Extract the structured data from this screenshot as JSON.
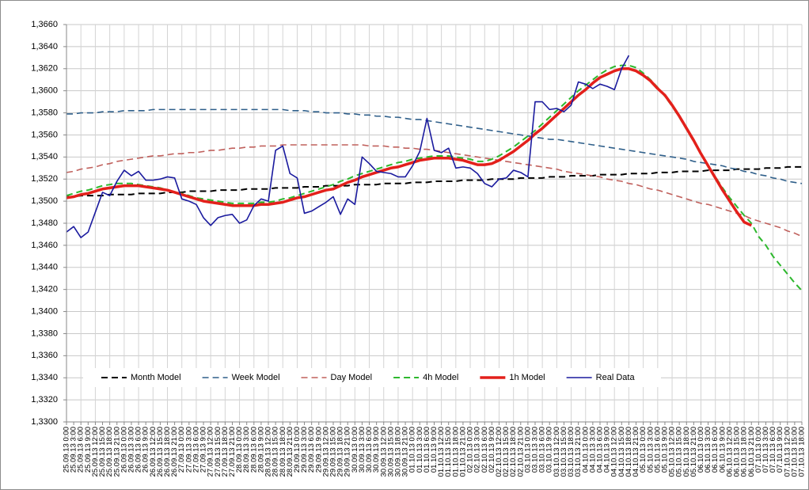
{
  "chart_data": {
    "type": "line",
    "categories": [
      "25.09.13 0:00",
      "25.09.13 3:00",
      "25.09.13 6:00",
      "25.09.13 9:00",
      "25.09.13 12:00",
      "25.09.13 15:00",
      "25.09.13 18:00",
      "25.09.13 21:00",
      "26.09.13 0:00",
      "26.09.13 3:00",
      "26.09.13 6:00",
      "26.09.13 9:00",
      "26.09.13 12:00",
      "26.09.13 15:00",
      "26.09.13 18:00",
      "26.09.13 21:00",
      "27.09.13 0:00",
      "27.09.13 3:00",
      "27.09.13 6:00",
      "27.09.13 9:00",
      "27.09.13 12:00",
      "27.09.13 15:00",
      "27.09.13 18:00",
      "27.09.13 21:00",
      "28.09.13 0:00",
      "28.09.13 3:00",
      "28.09.13 6:00",
      "28.09.13 9:00",
      "28.09.13 12:00",
      "28.09.13 15:00",
      "28.09.13 18:00",
      "28.09.13 21:00",
      "29.09.13 0:00",
      "29.09.13 3:00",
      "29.09.13 6:00",
      "29.09.13 9:00",
      "29.09.13 12:00",
      "29.09.13 15:00",
      "29.09.13 18:00",
      "29.09.13 21:00",
      "30.09.13 0:00",
      "30.09.13 3:00",
      "30.09.13 6:00",
      "30.09.13 9:00",
      "30.09.13 12:00",
      "30.09.13 15:00",
      "30.09.13 18:00",
      "30.09.13 21:00",
      "01.10.13 0:00",
      "01.10.13 3:00",
      "01.10.13 6:00",
      "01.10.13 9:00",
      "01.10.13 12:00",
      "01.10.13 15:00",
      "01.10.13 18:00",
      "01.10.13 21:00",
      "02.10.13 0:00",
      "02.10.13 3:00",
      "02.10.13 6:00",
      "02.10.13 9:00",
      "02.10.13 12:00",
      "02.10.13 15:00",
      "02.10.13 18:00",
      "02.10.13 21:00",
      "03.10.13 0:00",
      "03.10.13 3:00",
      "03.10.13 6:00",
      "03.10.13 9:00",
      "03.10.13 12:00",
      "03.10.13 15:00",
      "03.10.13 18:00",
      "03.10.13 21:00",
      "04.10.13 0:00",
      "04.10.13 3:00",
      "04.10.13 6:00",
      "04.10.13 9:00",
      "04.10.13 12:00",
      "04.10.13 15:00",
      "04.10.13 18:00",
      "04.10.13 21:00",
      "05.10.13 0:00",
      "05.10.13 3:00",
      "05.10.13 6:00",
      "05.10.13 9:00",
      "05.10.13 12:00",
      "05.10.13 15:00",
      "05.10.13 18:00",
      "05.10.13 21:00",
      "06.10.13 0:00",
      "06.10.13 3:00",
      "06.10.13 6:00",
      "06.10.13 9:00",
      "06.10.13 12:00",
      "06.10.13 15:00",
      "06.10.13 18:00",
      "06.10.13 21:00",
      "07.10.13 0:00",
      "07.10.13 3:00",
      "07.10.13 6:00",
      "07.10.13 9:00",
      "07.10.13 12:00",
      "07.10.13 15:00",
      "07.10.13 18:00"
    ],
    "series": [
      {
        "name": "Month Model",
        "color": "#000000",
        "dash": true,
        "width": 2,
        "values": [
          1.3504,
          1.3504,
          1.3505,
          1.3505,
          1.3505,
          1.3505,
          1.3506,
          1.3506,
          1.3506,
          1.3506,
          1.3507,
          1.3507,
          1.3507,
          1.3507,
          1.3508,
          1.3508,
          1.3508,
          1.3509,
          1.3509,
          1.3509,
          1.3509,
          1.351,
          1.351,
          1.351,
          1.351,
          1.3511,
          1.3511,
          1.3511,
          1.3511,
          1.3512,
          1.3512,
          1.3512,
          1.3512,
          1.3513,
          1.3513,
          1.3513,
          1.3514,
          1.3514,
          1.3514,
          1.3514,
          1.3515,
          1.3515,
          1.3515,
          1.3515,
          1.3516,
          1.3516,
          1.3516,
          1.3516,
          1.3517,
          1.3517,
          1.3517,
          1.3518,
          1.3518,
          1.3518,
          1.3518,
          1.3519,
          1.3519,
          1.3519,
          1.3519,
          1.352,
          1.352,
          1.352,
          1.352,
          1.3521,
          1.3521,
          1.3521,
          1.3521,
          1.3522,
          1.3522,
          1.3522,
          1.3523,
          1.3523,
          1.3523,
          1.3523,
          1.3524,
          1.3524,
          1.3524,
          1.3524,
          1.3525,
          1.3525,
          1.3525,
          1.3525,
          1.3526,
          1.3526,
          1.3526,
          1.3527,
          1.3527,
          1.3527,
          1.3527,
          1.3528,
          1.3528,
          1.3528,
          1.3528,
          1.3529,
          1.3529,
          1.3529,
          1.3529,
          1.353,
          1.353,
          1.353,
          1.3531,
          1.3531,
          1.3531
        ]
      },
      {
        "name": "Week Model",
        "color": "#2f5f8a",
        "dash": true,
        "width": 1.6,
        "values": [
          1.3579,
          1.3579,
          1.358,
          1.358,
          1.358,
          1.3581,
          1.3581,
          1.3581,
          1.3582,
          1.3582,
          1.3582,
          1.3582,
          1.3583,
          1.3583,
          1.3583,
          1.3583,
          1.3583,
          1.3583,
          1.3583,
          1.3583,
          1.3583,
          1.3583,
          1.3583,
          1.3583,
          1.3583,
          1.3583,
          1.3583,
          1.3583,
          1.3583,
          1.3583,
          1.3583,
          1.3582,
          1.3582,
          1.3582,
          1.3581,
          1.3581,
          1.358,
          1.358,
          1.358,
          1.3579,
          1.3579,
          1.3578,
          1.3578,
          1.3577,
          1.3577,
          1.3576,
          1.3576,
          1.3575,
          1.3574,
          1.3574,
          1.3573,
          1.3572,
          1.3571,
          1.357,
          1.3569,
          1.3568,
          1.3567,
          1.3566,
          1.3565,
          1.3564,
          1.3563,
          1.3562,
          1.3561,
          1.356,
          1.3559,
          1.3558,
          1.3557,
          1.3556,
          1.3556,
          1.3555,
          1.3554,
          1.3553,
          1.3552,
          1.3551,
          1.355,
          1.3549,
          1.3548,
          1.3547,
          1.3546,
          1.3545,
          1.3544,
          1.3543,
          1.3542,
          1.3541,
          1.354,
          1.3539,
          1.3538,
          1.3536,
          1.3535,
          1.3534,
          1.3533,
          1.3532,
          1.353,
          1.3529,
          1.3527,
          1.3526,
          1.3524,
          1.3523,
          1.3521,
          1.352,
          1.3518,
          1.3517,
          1.3516
        ]
      },
      {
        "name": "Day Model",
        "color": "#c0605c",
        "dash": true,
        "width": 1.6,
        "values": [
          1.3526,
          1.3527,
          1.3529,
          1.353,
          1.3531,
          1.3533,
          1.3534,
          1.3536,
          1.3537,
          1.3538,
          1.3539,
          1.354,
          1.3541,
          1.3541,
          1.3542,
          1.3543,
          1.3543,
          1.3544,
          1.3544,
          1.3545,
          1.3546,
          1.3546,
          1.3547,
          1.3548,
          1.3548,
          1.3549,
          1.3549,
          1.355,
          1.355,
          1.355,
          1.3551,
          1.3551,
          1.3551,
          1.3551,
          1.3551,
          1.3551,
          1.3551,
          1.3551,
          1.3551,
          1.3551,
          1.3551,
          1.3551,
          1.355,
          1.355,
          1.355,
          1.3549,
          1.3549,
          1.3548,
          1.3548,
          1.3547,
          1.3547,
          1.3546,
          1.3545,
          1.3544,
          1.3543,
          1.3542,
          1.3541,
          1.354,
          1.3539,
          1.3538,
          1.3537,
          1.3536,
          1.3535,
          1.3534,
          1.3533,
          1.3532,
          1.3531,
          1.353,
          1.3529,
          1.3527,
          1.3526,
          1.3525,
          1.3524,
          1.3523,
          1.3522,
          1.352,
          1.3519,
          1.3518,
          1.3516,
          1.3515,
          1.3513,
          1.3511,
          1.351,
          1.3508,
          1.3506,
          1.3504,
          1.3502,
          1.35,
          1.3498,
          1.3497,
          1.3495,
          1.3493,
          1.3491,
          1.3489,
          1.3487,
          1.3484,
          1.3482,
          1.348,
          1.3478,
          1.3476,
          1.3473,
          1.3471,
          1.3468
        ]
      },
      {
        "name": "4h Model",
        "color": "#2db82d",
        "dash": true,
        "width": 2,
        "values": [
          1.3505,
          1.3507,
          1.3509,
          1.351,
          1.3512,
          1.3514,
          1.3515,
          1.3516,
          1.3516,
          1.3516,
          1.3515,
          1.3514,
          1.3513,
          1.3512,
          1.351,
          1.3508,
          1.3507,
          1.3505,
          1.3503,
          1.3502,
          1.3501,
          1.35,
          1.3499,
          1.3498,
          1.3498,
          1.3498,
          1.3498,
          1.3499,
          1.3499,
          1.35,
          1.3502,
          1.3503,
          1.3505,
          1.3507,
          1.3509,
          1.3511,
          1.3513,
          1.3515,
          1.3518,
          1.352,
          1.3523,
          1.3525,
          1.3527,
          1.3529,
          1.3531,
          1.3533,
          1.3535,
          1.3536,
          1.3538,
          1.3539,
          1.354,
          1.3541,
          1.3541,
          1.3541,
          1.354,
          1.3539,
          1.3538,
          1.3536,
          1.3536,
          1.3538,
          1.3541,
          1.3545,
          1.3549,
          1.3554,
          1.3559,
          1.3564,
          1.357,
          1.3576,
          1.3582,
          1.3588,
          1.3594,
          1.36,
          1.3605,
          1.361,
          1.3615,
          1.3619,
          1.3622,
          1.3623,
          1.3623,
          1.3621,
          1.3616,
          1.361,
          1.3603,
          1.3595,
          1.3586,
          1.3576,
          1.3565,
          1.3554,
          1.3543,
          1.3532,
          1.3522,
          1.3512,
          1.3503,
          1.3495,
          1.3487,
          1.348,
          1.3468,
          1.346,
          1.345,
          1.3442,
          1.3434,
          1.3426,
          1.3419
        ]
      },
      {
        "name": "1h Model",
        "color": "#e3201b",
        "dash": false,
        "width": 3.5,
        "values": [
          1.3503,
          1.3504,
          1.3506,
          1.3507,
          1.3509,
          1.3511,
          1.3512,
          1.3513,
          1.3514,
          1.3514,
          1.3514,
          1.3513,
          1.3512,
          1.3511,
          1.351,
          1.3508,
          1.3506,
          1.3504,
          1.3502,
          1.35,
          1.3499,
          1.3498,
          1.3497,
          1.3496,
          1.3496,
          1.3496,
          1.3496,
          1.3497,
          1.3497,
          1.3498,
          1.3499,
          1.3501,
          1.3503,
          1.3504,
          1.3506,
          1.3508,
          1.351,
          1.3511,
          1.3514,
          1.3517,
          1.3519,
          1.3522,
          1.3524,
          1.3526,
          1.3528,
          1.353,
          1.3531,
          1.3533,
          1.3535,
          1.3537,
          1.3538,
          1.3539,
          1.3539,
          1.3539,
          1.3538,
          1.3537,
          1.3535,
          1.3533,
          1.3533,
          1.3534,
          1.3537,
          1.3541,
          1.3545,
          1.355,
          1.3555,
          1.3561,
          1.3566,
          1.3572,
          1.3578,
          1.3584,
          1.359,
          1.3596,
          1.3601,
          1.3607,
          1.3612,
          1.3615,
          1.3618,
          1.362,
          1.362,
          1.3618,
          1.3614,
          1.3609,
          1.3602,
          1.3596,
          1.3587,
          1.3577,
          1.3566,
          1.3555,
          1.3543,
          1.3532,
          1.3521,
          1.351,
          1.35,
          1.349,
          1.3481,
          1.3478,
          null,
          null,
          null,
          null,
          null,
          null,
          null
        ]
      },
      {
        "name": "Real Data",
        "color": "#1a1a9e",
        "dash": false,
        "width": 1.6,
        "values": [
          1.3472,
          1.3477,
          1.3467,
          1.3472,
          1.349,
          1.3508,
          1.3505,
          1.3518,
          1.3528,
          1.3523,
          1.3527,
          1.3519,
          1.3519,
          1.352,
          1.3522,
          1.3521,
          1.3502,
          1.35,
          1.3497,
          1.3485,
          1.3478,
          1.3485,
          1.3487,
          1.3488,
          1.348,
          1.3483,
          1.3496,
          1.3502,
          1.35,
          1.3546,
          1.355,
          1.3525,
          1.3521,
          1.3489,
          1.3491,
          1.3495,
          1.3499,
          1.3504,
          1.3488,
          1.3502,
          1.3497,
          1.354,
          1.3534,
          1.3527,
          1.3526,
          1.3525,
          1.3522,
          1.3522,
          1.3532,
          1.3545,
          1.3575,
          1.3546,
          1.3544,
          1.3548,
          1.353,
          1.3531,
          1.353,
          1.3525,
          1.3516,
          1.3513,
          1.352,
          1.3521,
          1.3528,
          1.3526,
          1.3522,
          1.359,
          1.359,
          1.3583,
          1.3584,
          1.3581,
          1.3587,
          1.3608,
          1.3606,
          1.3602,
          1.3606,
          1.3604,
          1.3601,
          1.362,
          1.3632,
          null,
          null,
          null,
          null,
          null,
          null,
          null,
          null,
          null,
          null,
          null,
          null,
          null,
          null,
          null,
          null,
          null,
          null,
          null,
          null,
          null,
          null,
          null,
          null
        ]
      }
    ],
    "ylim": [
      1.33,
      1.366
    ],
    "yticks": [
      {
        "value": 1.33,
        "label": "1,3300"
      },
      {
        "value": 1.332,
        "label": "1,3320"
      },
      {
        "value": 1.334,
        "label": "1,3340"
      },
      {
        "value": 1.336,
        "label": "1,3360"
      },
      {
        "value": 1.338,
        "label": "1,3380"
      },
      {
        "value": 1.34,
        "label": "1,3400"
      },
      {
        "value": 1.342,
        "label": "1,3420"
      },
      {
        "value": 1.344,
        "label": "1,3440"
      },
      {
        "value": 1.346,
        "label": "1,3460"
      },
      {
        "value": 1.348,
        "label": "1,3480"
      },
      {
        "value": 1.35,
        "label": "1,3500"
      },
      {
        "value": 1.352,
        "label": "1,3520"
      },
      {
        "value": 1.354,
        "label": "1,3540"
      },
      {
        "value": 1.356,
        "label": "1,3560"
      },
      {
        "value": 1.358,
        "label": "1,3580"
      },
      {
        "value": 1.36,
        "label": "1,3600"
      },
      {
        "value": 1.362,
        "label": "1,3620"
      },
      {
        "value": 1.364,
        "label": "1,3640"
      },
      {
        "value": 1.366,
        "label": "1,3660"
      }
    ],
    "grid": true,
    "legend": "bottom"
  }
}
